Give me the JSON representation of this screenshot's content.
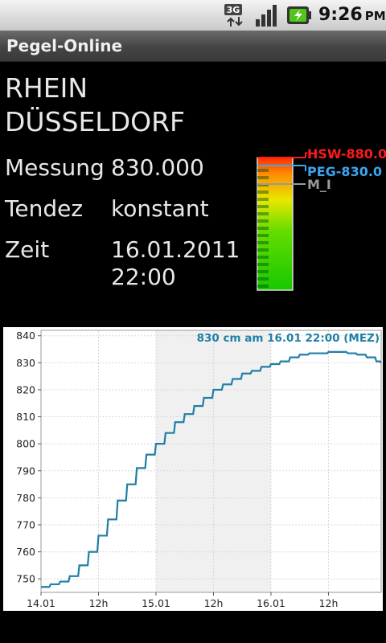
{
  "status_bar": {
    "network": "3G",
    "time": "9:26",
    "ampm": "PM"
  },
  "app": {
    "title": "Pegel-Online"
  },
  "station": {
    "river": "RHEIN",
    "name": "DÜSSELDORF"
  },
  "measurement": {
    "messung_label": "Messung",
    "messung_value": "830.000",
    "tendenz_label": "Tendez",
    "tendenz_value": "konstant",
    "zeit_label": "Zeit",
    "zeit_date": "16.01.2011",
    "zeit_time": "22:00"
  },
  "gauge": {
    "hsw_label": "HSW-880.0",
    "peg_label": "PEG-830.0",
    "mi_label": "M_I",
    "hsw_color": "#ff1a1a",
    "peg_color": "#3ca6f0",
    "mi_color": "#9a9a9a"
  },
  "chart_data": {
    "type": "line",
    "annotation": "830 cm am 16.01 22:00 (MEZ)",
    "yticks": [
      "750",
      "760",
      "770",
      "780",
      "790",
      "800",
      "810",
      "820",
      "830",
      "840"
    ],
    "xticks": [
      "14.01",
      "12h",
      "15.01",
      "12h",
      "16.01",
      "12h"
    ],
    "ylim": [
      745,
      842
    ],
    "xlim": [
      0,
      71
    ],
    "highlight_range": [
      24,
      48
    ],
    "line_color": "#1f7fa6",
    "x": [
      0,
      2,
      4,
      6,
      8,
      10,
      12,
      14,
      16,
      18,
      20,
      22,
      24,
      26,
      28,
      30,
      32,
      34,
      36,
      38,
      40,
      42,
      44,
      46,
      48,
      50,
      52,
      54,
      56,
      58,
      60,
      62,
      64,
      66,
      68,
      70,
      71
    ],
    "values": [
      747,
      748,
      749,
      751,
      755,
      760,
      766,
      772,
      779,
      785,
      791,
      796,
      800,
      804,
      808,
      811,
      814,
      817,
      820,
      822,
      824,
      826,
      827,
      828.5,
      829.5,
      830.5,
      832,
      833,
      833.5,
      833.5,
      834,
      834,
      833.5,
      833,
      832,
      830.5,
      830
    ]
  }
}
